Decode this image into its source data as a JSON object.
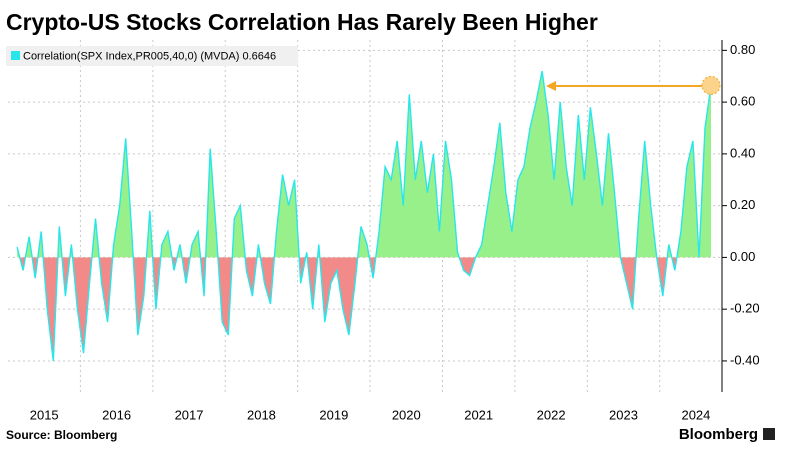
{
  "chart_data": {
    "type": "area",
    "title": "Crypto-US Stocks Correlation Has Rarely Been Higher",
    "source": "Source: Bloomberg",
    "brand": "Bloomberg",
    "legend_position": "top-left",
    "grid": true,
    "positive_color": "#98f08a",
    "negative_color": "#f28a8a",
    "x": [
      2015.125,
      2015.208,
      2015.292,
      2015.375,
      2015.458,
      2015.542,
      2015.625,
      2015.708,
      2015.792,
      2015.875,
      2015.958,
      2016.042,
      2016.125,
      2016.208,
      2016.292,
      2016.375,
      2016.458,
      2016.542,
      2016.625,
      2016.708,
      2016.792,
      2016.875,
      2016.958,
      2017.042,
      2017.125,
      2017.208,
      2017.292,
      2017.375,
      2017.458,
      2017.542,
      2017.625,
      2017.708,
      2017.792,
      2017.875,
      2017.958,
      2018.042,
      2018.125,
      2018.208,
      2018.292,
      2018.375,
      2018.458,
      2018.542,
      2018.625,
      2018.708,
      2018.792,
      2018.875,
      2018.958,
      2019.042,
      2019.125,
      2019.208,
      2019.292,
      2019.375,
      2019.458,
      2019.542,
      2019.625,
      2019.708,
      2019.792,
      2019.875,
      2019.958,
      2020.042,
      2020.125,
      2020.208,
      2020.292,
      2020.375,
      2020.458,
      2020.542,
      2020.625,
      2020.708,
      2020.792,
      2020.875,
      2020.958,
      2021.042,
      2021.125,
      2021.208,
      2021.292,
      2021.375,
      2021.458,
      2021.542,
      2021.625,
      2021.708,
      2021.792,
      2021.875,
      2021.958,
      2022.042,
      2022.125,
      2022.208,
      2022.292,
      2022.375,
      2022.458,
      2022.542,
      2022.625,
      2022.708,
      2022.792,
      2022.875,
      2022.958,
      2023.042,
      2023.125,
      2023.208,
      2023.292,
      2023.375,
      2023.458,
      2023.542,
      2023.625,
      2023.708,
      2023.792,
      2023.875,
      2023.958,
      2024.042,
      2024.125,
      2024.208,
      2024.292,
      2024.375,
      2024.458,
      2024.542,
      2024.625,
      2024.708
    ],
    "series": [
      {
        "name": "Correlation(SPX Index,PR005,40,0) (MVDA) 0.6646",
        "color": "#29e6ea",
        "values": [
          0.04,
          -0.05,
          0.08,
          -0.08,
          0.1,
          -0.2,
          -0.4,
          0.12,
          -0.15,
          0.05,
          -0.2,
          -0.37,
          -0.1,
          0.15,
          -0.1,
          -0.25,
          0.05,
          0.2,
          0.46,
          0.1,
          -0.3,
          -0.15,
          0.18,
          -0.2,
          0.05,
          0.1,
          -0.05,
          0.05,
          -0.1,
          0.05,
          0.1,
          -0.15,
          0.42,
          0.1,
          -0.25,
          -0.3,
          0.15,
          0.2,
          -0.05,
          -0.15,
          0.05,
          -0.1,
          -0.18,
          0.1,
          0.32,
          0.2,
          0.3,
          -0.1,
          0.02,
          -0.2,
          0.05,
          -0.25,
          -0.1,
          -0.05,
          -0.2,
          -0.3,
          -0.1,
          0.12,
          0.05,
          -0.08,
          0.1,
          0.35,
          0.3,
          0.45,
          0.2,
          0.63,
          0.3,
          0.45,
          0.25,
          0.4,
          0.1,
          0.45,
          0.3,
          0.02,
          -0.05,
          -0.07,
          0.0,
          0.05,
          0.2,
          0.35,
          0.52,
          0.25,
          0.1,
          0.3,
          0.35,
          0.5,
          0.6,
          0.72,
          0.55,
          0.3,
          0.6,
          0.35,
          0.2,
          0.55,
          0.3,
          0.58,
          0.4,
          0.2,
          0.48,
          0.25,
          0.0,
          -0.1,
          -0.2,
          0.15,
          0.45,
          0.2,
          0.0,
          -0.15,
          0.05,
          -0.05,
          0.1,
          0.35,
          0.45,
          0.0,
          0.5,
          0.6646
        ]
      }
    ],
    "xlim": [
      2015,
      2024.86
    ],
    "xgrid": [
      2016,
      2017,
      2018,
      2019,
      2020,
      2021,
      2022,
      2023,
      2024
    ],
    "xticks": [
      {
        "value": 2015.5,
        "label": "2015"
      },
      {
        "value": 2016.5,
        "label": "2016"
      },
      {
        "value": 2017.5,
        "label": "2017"
      },
      {
        "value": 2018.5,
        "label": "2018"
      },
      {
        "value": 2019.5,
        "label": "2019"
      },
      {
        "value": 2020.5,
        "label": "2020"
      },
      {
        "value": 2021.5,
        "label": "2021"
      },
      {
        "value": 2022.5,
        "label": "2022"
      },
      {
        "value": 2023.5,
        "label": "2023"
      },
      {
        "value": 2024.5,
        "label": "2024"
      }
    ],
    "ylim": [
      -0.52,
      0.84
    ],
    "yticks": [
      {
        "value": -0.4,
        "label": "-0.40"
      },
      {
        "value": -0.2,
        "label": "-0.20"
      },
      {
        "value": 0,
        "label": "0.00"
      },
      {
        "value": 0.2,
        "label": "0.20"
      },
      {
        "value": 0.4,
        "label": "0.40"
      },
      {
        "value": 0.6,
        "label": "0.60"
      },
      {
        "value": 0.8,
        "label": "0.80"
      }
    ]
  }
}
